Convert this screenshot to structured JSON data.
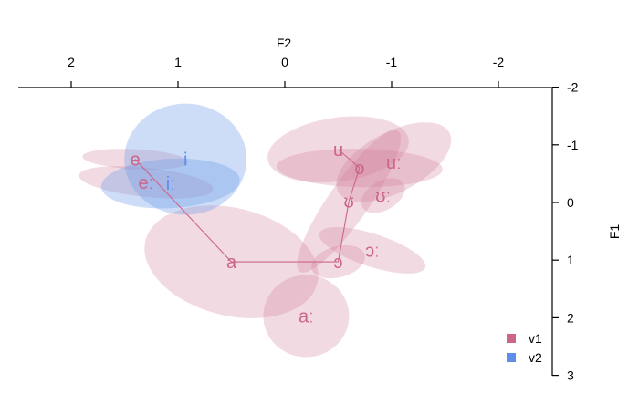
{
  "chart_data": {
    "type": "scatter",
    "title": "",
    "xlabel": "F2",
    "ylabel": "F1",
    "x_axis_position": "top",
    "y_axis_position": "right",
    "x_reversed": true,
    "y_reversed": true,
    "xlim": [
      2.5,
      -2.5
    ],
    "ylim": [
      -2,
      3
    ],
    "xticks": [
      2,
      1,
      0,
      -1,
      -2
    ],
    "yticks": [
      -2,
      -1,
      0,
      1,
      2,
      3
    ],
    "grid": false,
    "legend_position": "bottom-right",
    "series": [
      {
        "name": "v1",
        "color": "#cc6688",
        "points": [
          {
            "label": "e",
            "x": 1.4,
            "y": -0.75
          },
          {
            "label": "eː",
            "x": 1.3,
            "y": -0.35
          },
          {
            "label": "a",
            "x": 0.5,
            "y": 1.03
          },
          {
            "label": "aː",
            "x": -0.2,
            "y": 1.97
          },
          {
            "label": "ɔ",
            "x": -0.5,
            "y": 1.03
          },
          {
            "label": "ɔː",
            "x": -0.82,
            "y": 0.83
          },
          {
            "label": "ʊ",
            "x": -0.6,
            "y": -0.02
          },
          {
            "label": "ʊː",
            "x": -0.92,
            "y": -0.12
          },
          {
            "label": "o",
            "x": -0.7,
            "y": -0.6
          },
          {
            "label": "u",
            "x": -0.5,
            "y": -0.92
          },
          {
            "label": "uː",
            "x": -1.02,
            "y": -0.7
          }
        ]
      },
      {
        "name": "v2",
        "color": "#5b8fea",
        "points": [
          {
            "label": "i",
            "x": 0.93,
            "y": -0.75
          },
          {
            "label": "iː",
            "x": 1.07,
            "y": -0.33
          }
        ]
      }
    ],
    "connecting_lines": [
      [
        "e",
        "a"
      ],
      [
        "a",
        "ɔ"
      ],
      [
        "ɔ",
        "ʊ"
      ],
      [
        "ʊ",
        "o"
      ],
      [
        "o",
        "u"
      ]
    ]
  }
}
